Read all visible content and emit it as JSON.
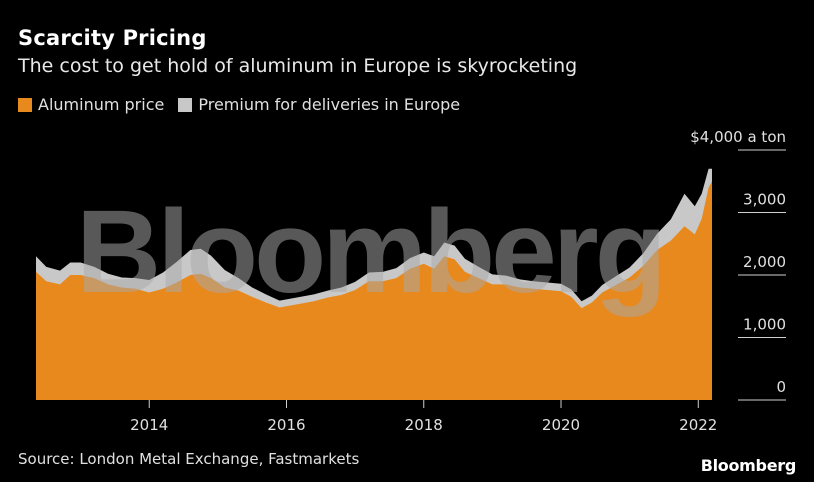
{
  "header": {
    "title": "Scarcity Pricing",
    "subtitle": "The cost to get hold of aluminum in Europe is skyrocketing"
  },
  "legend": {
    "items": [
      {
        "label": "Aluminum price",
        "color": "#e8891d"
      },
      {
        "label": "Premium for deliveries in Europe",
        "color": "#c8c8c8"
      }
    ]
  },
  "footer": {
    "source": "Source: London Metal Exchange, Fastmarkets",
    "brand": "Bloomberg"
  },
  "watermark": "Bloomberg",
  "chart_data": {
    "type": "area",
    "title": "Scarcity Pricing",
    "subtitle": "The cost to get hold of aluminum in Europe is skyrocketing",
    "unit_label": "a ton",
    "currency_prefix": "$",
    "ylim": [
      0,
      4000
    ],
    "xlim": [
      2012.35,
      2022.2
    ],
    "y_ticks": [
      0,
      1000,
      2000,
      3000,
      4000
    ],
    "y_tick_labels": [
      "0",
      "1,000",
      "2,000",
      "3,000",
      "4,000"
    ],
    "x_ticks": [
      2014,
      2016,
      2018,
      2020,
      2022
    ],
    "x_tick_labels": [
      "2014",
      "2016",
      "2018",
      "2020",
      "2022"
    ],
    "grid": false,
    "legend_position": "top-left",
    "series": [
      {
        "name": "Aluminum price",
        "color": "#e8891d",
        "stacked": true,
        "points": [
          [
            2012.35,
            2050
          ],
          [
            2012.5,
            1900
          ],
          [
            2012.7,
            1850
          ],
          [
            2012.85,
            2000
          ],
          [
            2013.0,
            2000
          ],
          [
            2013.2,
            1950
          ],
          [
            2013.4,
            1850
          ],
          [
            2013.6,
            1800
          ],
          [
            2013.8,
            1780
          ],
          [
            2014.0,
            1720
          ],
          [
            2014.2,
            1780
          ],
          [
            2014.4,
            1880
          ],
          [
            2014.6,
            2000
          ],
          [
            2014.75,
            2020
          ],
          [
            2014.9,
            1950
          ],
          [
            2015.1,
            1800
          ],
          [
            2015.3,
            1750
          ],
          [
            2015.5,
            1650
          ],
          [
            2015.7,
            1560
          ],
          [
            2015.9,
            1480
          ],
          [
            2016.0,
            1500
          ],
          [
            2016.2,
            1540
          ],
          [
            2016.4,
            1580
          ],
          [
            2016.6,
            1640
          ],
          [
            2016.8,
            1680
          ],
          [
            2017.0,
            1760
          ],
          [
            2017.2,
            1900
          ],
          [
            2017.4,
            1900
          ],
          [
            2017.6,
            1950
          ],
          [
            2017.8,
            2100
          ],
          [
            2018.0,
            2180
          ],
          [
            2018.15,
            2100
          ],
          [
            2018.3,
            2300
          ],
          [
            2018.45,
            2250
          ],
          [
            2018.6,
            2050
          ],
          [
            2018.8,
            1950
          ],
          [
            2019.0,
            1850
          ],
          [
            2019.2,
            1850
          ],
          [
            2019.4,
            1800
          ],
          [
            2019.6,
            1780
          ],
          [
            2019.8,
            1760
          ],
          [
            2020.0,
            1740
          ],
          [
            2020.15,
            1650
          ],
          [
            2020.3,
            1470
          ],
          [
            2020.45,
            1560
          ],
          [
            2020.6,
            1720
          ],
          [
            2020.8,
            1840
          ],
          [
            2021.0,
            1960
          ],
          [
            2021.2,
            2150
          ],
          [
            2021.4,
            2400
          ],
          [
            2021.6,
            2550
          ],
          [
            2021.8,
            2780
          ],
          [
            2021.95,
            2650
          ],
          [
            2022.05,
            2900
          ],
          [
            2022.15,
            3400
          ],
          [
            2022.2,
            3500
          ]
        ]
      },
      {
        "name": "Premium for deliveries in Europe",
        "color": "#c8c8c8",
        "stacked": true,
        "points": [
          [
            2012.35,
            250
          ],
          [
            2012.5,
            230
          ],
          [
            2012.7,
            220
          ],
          [
            2012.85,
            200
          ],
          [
            2013.0,
            200
          ],
          [
            2013.2,
            180
          ],
          [
            2013.4,
            170
          ],
          [
            2013.6,
            160
          ],
          [
            2013.8,
            170
          ],
          [
            2014.0,
            200
          ],
          [
            2014.2,
            260
          ],
          [
            2014.4,
            330
          ],
          [
            2014.6,
            400
          ],
          [
            2014.75,
            400
          ],
          [
            2014.9,
            360
          ],
          [
            2015.1,
            280
          ],
          [
            2015.3,
            200
          ],
          [
            2015.5,
            150
          ],
          [
            2015.7,
            130
          ],
          [
            2015.9,
            110
          ],
          [
            2016.0,
            110
          ],
          [
            2016.2,
            110
          ],
          [
            2016.4,
            110
          ],
          [
            2016.6,
            110
          ],
          [
            2016.8,
            120
          ],
          [
            2017.0,
            130
          ],
          [
            2017.2,
            140
          ],
          [
            2017.4,
            150
          ],
          [
            2017.6,
            160
          ],
          [
            2017.8,
            170
          ],
          [
            2018.0,
            180
          ],
          [
            2018.15,
            200
          ],
          [
            2018.3,
            220
          ],
          [
            2018.45,
            220
          ],
          [
            2018.6,
            210
          ],
          [
            2018.8,
            180
          ],
          [
            2019.0,
            160
          ],
          [
            2019.2,
            140
          ],
          [
            2019.4,
            130
          ],
          [
            2019.6,
            120
          ],
          [
            2019.8,
            120
          ],
          [
            2020.0,
            120
          ],
          [
            2020.15,
            120
          ],
          [
            2020.3,
            110
          ],
          [
            2020.45,
            110
          ],
          [
            2020.6,
            120
          ],
          [
            2020.8,
            140
          ],
          [
            2021.0,
            160
          ],
          [
            2021.2,
            200
          ],
          [
            2021.4,
            260
          ],
          [
            2021.6,
            340
          ],
          [
            2021.8,
            520
          ],
          [
            2021.95,
            450
          ],
          [
            2022.05,
            400
          ],
          [
            2022.15,
            300
          ],
          [
            2022.2,
            200
          ]
        ]
      }
    ]
  }
}
